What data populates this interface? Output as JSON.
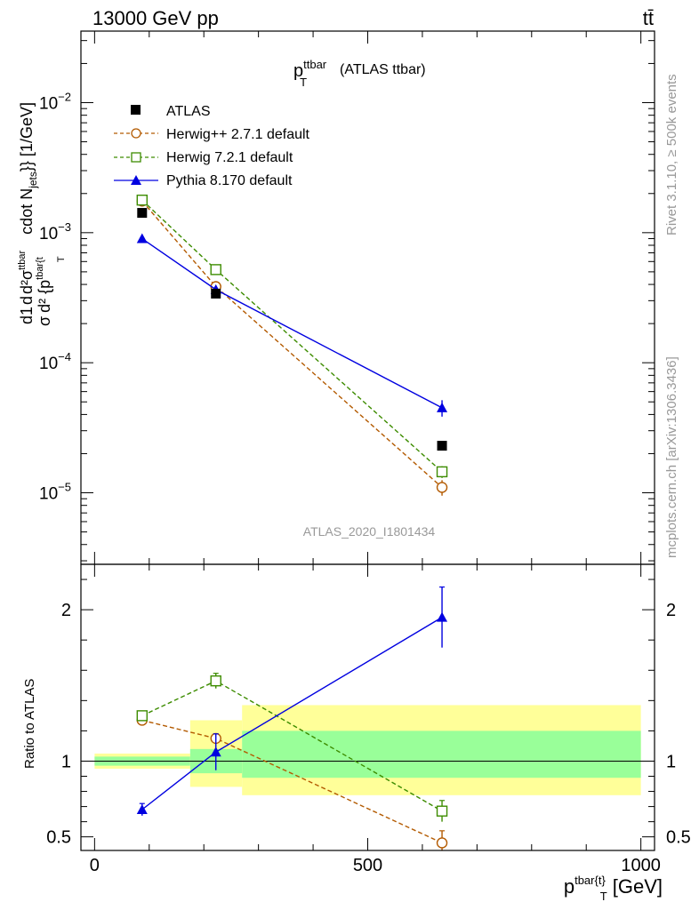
{
  "header": {
    "left": "13000 GeV pp",
    "right": "tt̄"
  },
  "side_labels": {
    "rivet": "Rivet 3.1.10, ≥ 500k events",
    "mcplots": "mcplots.cern.ch [arXiv:1306.3436]"
  },
  "chart_data": {
    "type": "scatter",
    "title": "p_T^ttbar (ATLAS ttbar)",
    "title_main": "p",
    "title_sup": "ttbar",
    "title_sub": "T",
    "title_rest": "(ATLAS ttbar)",
    "watermark": "ATLAS_2020_I1801434",
    "ylabel_text": "d1dσ d²σ^ttbar cdot N_jets}} [1/GeV] d² {p^tbar{t}_T",
    "ylabel_parts": {
      "frac": "d",
      "one": "1",
      "sigma": "σ",
      "d2sigma": "d²σ",
      "sup": "ttbar",
      "den": "d² {p",
      "densup": "tbar{t",
      "densub": "T",
      "rest": "cdot N",
      "rest_sub": "jets",
      "rest2": "}} [1/GeV]"
    },
    "xlabel_text": "p^tbar{t}_T [GeV]",
    "xlabel_parts": {
      "p": "p",
      "sup": "tbar{t}",
      "sub": "T",
      "unit": "[GeV]"
    },
    "ratio_ylabel": "Ratio to ATLAS",
    "xlim": [
      -25,
      1025
    ],
    "main_ylim_log10": [
      -5.55,
      -1.45
    ],
    "ratio_ylim": [
      0.41,
      2.3
    ],
    "x_ticks": [
      0,
      500,
      1000
    ],
    "x_tick_labels": [
      "0",
      "500",
      "1000"
    ],
    "main_y_ticks": [
      {
        "exp": -5,
        "label_base": "10",
        "label_exp": "−5"
      },
      {
        "exp": -4,
        "label_base": "10",
        "label_exp": "−4"
      },
      {
        "exp": -3,
        "label_base": "10",
        "label_exp": "−3"
      },
      {
        "exp": -2,
        "label_base": "10",
        "label_exp": "−2"
      }
    ],
    "ratio_y_ticks": [
      0.5,
      1,
      2
    ],
    "ratio_y_tick_labels": [
      "0.5",
      "1",
      "2"
    ],
    "bins": [
      [
        0,
        175
      ],
      [
        175,
        270
      ],
      [
        270,
        1000
      ]
    ],
    "data": {
      "name": "ATLAS",
      "color": "#000000",
      "x": [
        87,
        222,
        636
      ],
      "y": [
        0.00142,
        0.00034,
        2.3e-05
      ],
      "band_yellow": [
        [
          0.95,
          1.05
        ],
        [
          0.83,
          1.27
        ],
        [
          0.775,
          1.37
        ]
      ],
      "band_green": [
        [
          0.97,
          1.03
        ],
        [
          0.92,
          1.08
        ],
        [
          0.89,
          1.2
        ]
      ]
    },
    "series": [
      {
        "name": "Herwig++ 2.7.1 default",
        "color": "#b35a00",
        "marker": "circle",
        "dashed": true,
        "x": [
          87,
          222,
          636
        ],
        "y": [
          0.00175,
          0.000385,
          1.1e-05
        ],
        "yerr": [
          5e-05,
          1e-05,
          1.5e-06
        ],
        "ratio": [
          1.27,
          1.15,
          0.46
        ],
        "ratio_err": [
          0.02,
          0.03,
          0.08
        ]
      },
      {
        "name": "Herwig 7.2.1 default",
        "color": "#3d8c00",
        "marker": "square",
        "dashed": true,
        "x": [
          87,
          222,
          636
        ],
        "y": [
          0.00178,
          0.00052,
          1.45e-05
        ],
        "yerr": [
          5e-05,
          2e-05,
          1.5e-06
        ],
        "ratio": [
          1.3,
          1.53,
          0.67
        ],
        "ratio_err": [
          0.02,
          0.05,
          0.07
        ]
      },
      {
        "name": "Pythia 8.170 default",
        "color": "#0000e0",
        "marker": "triangle",
        "dashed": false,
        "x": [
          87,
          222,
          636
        ],
        "y": [
          0.0009,
          0.000365,
          4.5e-05
        ],
        "yerr": [
          3e-05,
          2e-05,
          6.5e-06
        ],
        "ratio": [
          0.68,
          1.06,
          1.95
        ],
        "ratio_err": [
          0.04,
          0.12,
          0.2
        ]
      }
    ]
  }
}
